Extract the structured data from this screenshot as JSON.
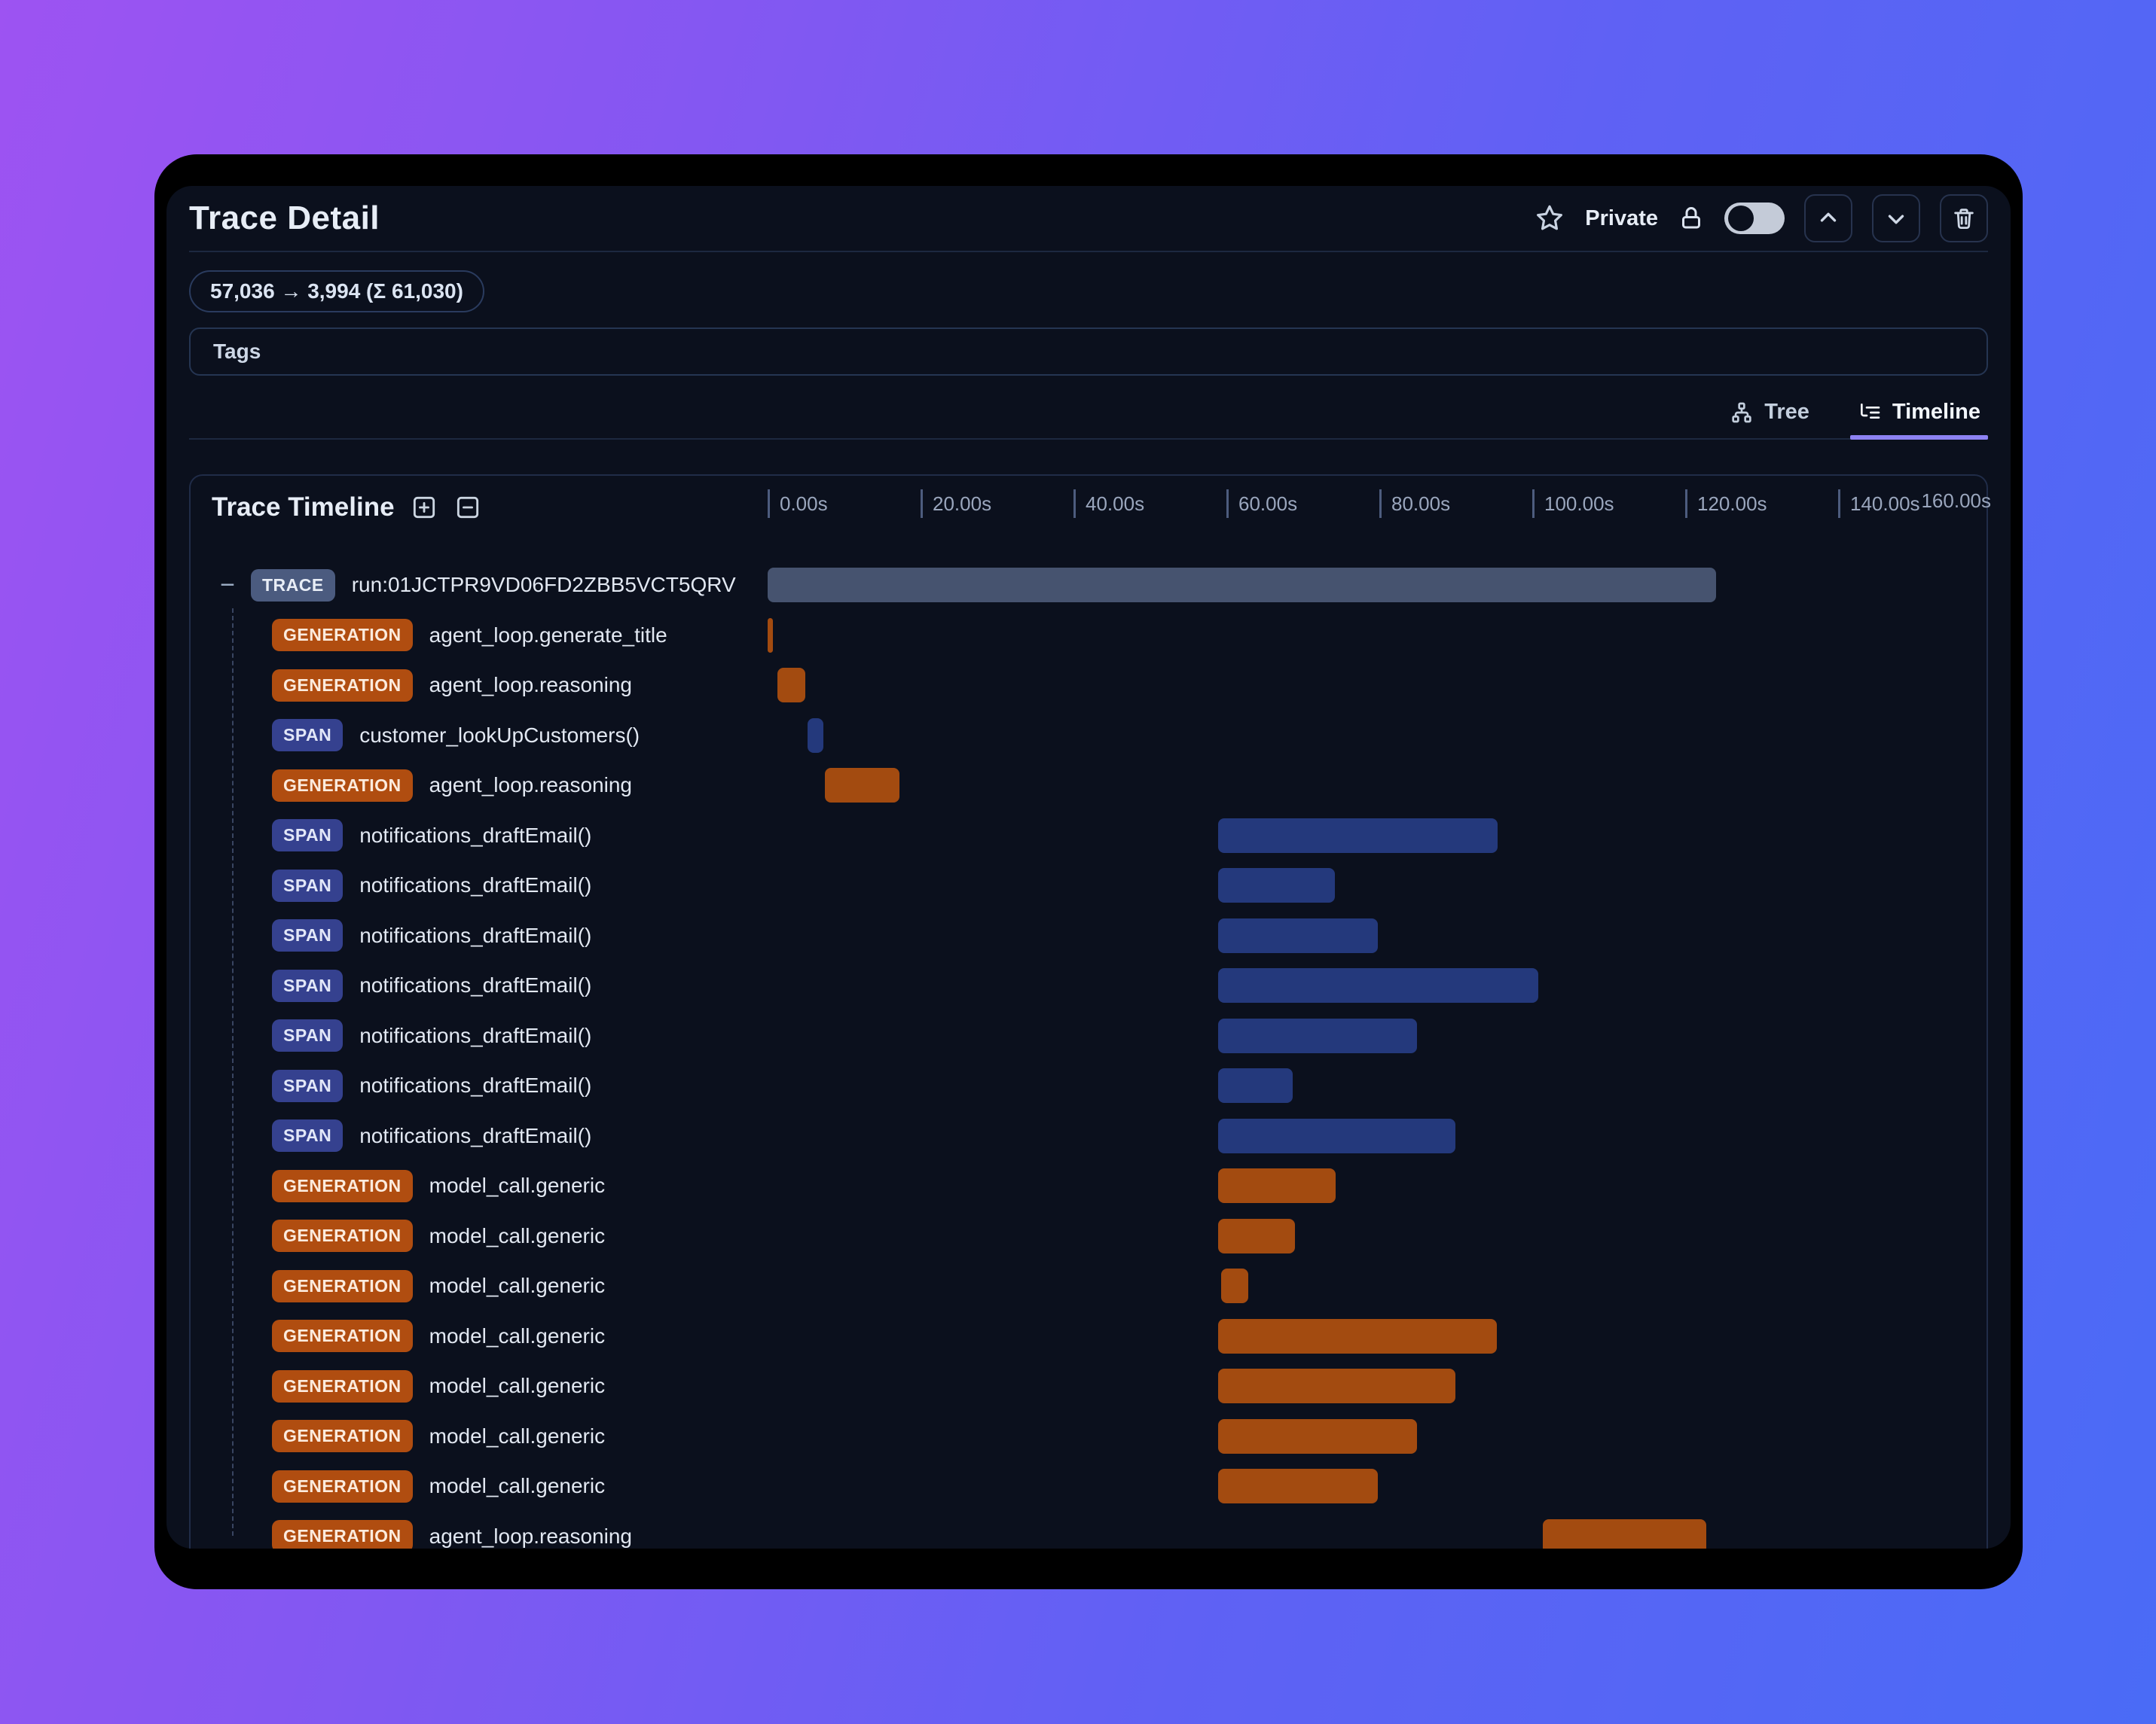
{
  "header": {
    "title": "Trace Detail",
    "privacy_label": "Private",
    "privacy_toggle_state": "off"
  },
  "token_badge": "57,036 → 3,994 (Σ 61,030)",
  "tags": {
    "label": "Tags"
  },
  "tabs": [
    {
      "label": "Tree",
      "active": false
    },
    {
      "label": "Timeline",
      "active": true
    }
  ],
  "panel": {
    "title": "Trace Timeline"
  },
  "colors": {
    "bar_trace": "#46536f",
    "bar_span": "#24397c",
    "bar_generation": "#a34b10",
    "badge_trace_bg": "#4b5b7f",
    "badge_span_bg": "#35418f",
    "badge_generation_bg": "#b04d10",
    "tab_active_underline": "#8d82f2",
    "window_bg": "#0b101d"
  },
  "chart_data": {
    "type": "timeline",
    "title": "Trace Timeline",
    "axis": {
      "unit": "seconds",
      "min": 0,
      "max": 160,
      "tick_interval": 20,
      "tick_labels": [
        "0.00s",
        "20.00s",
        "40.00s",
        "60.00s",
        "80.00s",
        "100.00s",
        "120.00s",
        "140.00s"
      ],
      "end_label": "160.00s"
    },
    "rows": [
      {
        "badge": "TRACE",
        "type": "trace",
        "label": "run:01JCTPR9VD06FD2ZBB5VCT5QRV",
        "start_s": 0,
        "end_s": 124.0,
        "collapsible": true
      },
      {
        "badge": "GENERATION",
        "type": "generation",
        "label": "agent_loop.generate_title",
        "start_s": 0,
        "end_s": 0.7
      },
      {
        "badge": "GENERATION",
        "type": "generation",
        "label": "agent_loop.reasoning",
        "start_s": 1.3,
        "end_s": 4.9
      },
      {
        "badge": "SPAN",
        "type": "span",
        "label": "customer_lookUpCustomers()",
        "start_s": 5.2,
        "end_s": 7.3
      },
      {
        "badge": "GENERATION",
        "type": "generation",
        "label": "agent_loop.reasoning",
        "start_s": 7.5,
        "end_s": 17.2
      },
      {
        "badge": "SPAN",
        "type": "span",
        "label": "notifications_draftEmail()",
        "start_s": 58.9,
        "end_s": 95.5
      },
      {
        "badge": "SPAN",
        "type": "span",
        "label": "notifications_draftEmail()",
        "start_s": 58.9,
        "end_s": 74.2
      },
      {
        "badge": "SPAN",
        "type": "span",
        "label": "notifications_draftEmail()",
        "start_s": 58.9,
        "end_s": 79.8
      },
      {
        "badge": "SPAN",
        "type": "span",
        "label": "notifications_draftEmail()",
        "start_s": 58.9,
        "end_s": 100.8
      },
      {
        "badge": "SPAN",
        "type": "span",
        "label": "notifications_draftEmail()",
        "start_s": 58.9,
        "end_s": 84.9
      },
      {
        "badge": "SPAN",
        "type": "span",
        "label": "notifications_draftEmail()",
        "start_s": 58.9,
        "end_s": 68.7
      },
      {
        "badge": "SPAN",
        "type": "span",
        "label": "notifications_draftEmail()",
        "start_s": 58.9,
        "end_s": 90.0
      },
      {
        "badge": "GENERATION",
        "type": "generation",
        "label": "model_call.generic",
        "start_s": 58.9,
        "end_s": 74.3
      },
      {
        "badge": "GENERATION",
        "type": "generation",
        "label": "model_call.generic",
        "start_s": 58.9,
        "end_s": 69.0
      },
      {
        "badge": "GENERATION",
        "type": "generation",
        "label": "model_call.generic",
        "start_s": 59.3,
        "end_s": 62.9
      },
      {
        "badge": "GENERATION",
        "type": "generation",
        "label": "model_call.generic",
        "start_s": 58.9,
        "end_s": 95.4
      },
      {
        "badge": "GENERATION",
        "type": "generation",
        "label": "model_call.generic",
        "start_s": 58.9,
        "end_s": 90.0
      },
      {
        "badge": "GENERATION",
        "type": "generation",
        "label": "model_call.generic",
        "start_s": 58.9,
        "end_s": 84.9
      },
      {
        "badge": "GENERATION",
        "type": "generation",
        "label": "model_call.generic",
        "start_s": 58.9,
        "end_s": 79.8
      },
      {
        "badge": "GENERATION",
        "type": "generation",
        "label": "agent_loop.reasoning",
        "start_s": 101.4,
        "end_s": 122.8
      }
    ]
  }
}
